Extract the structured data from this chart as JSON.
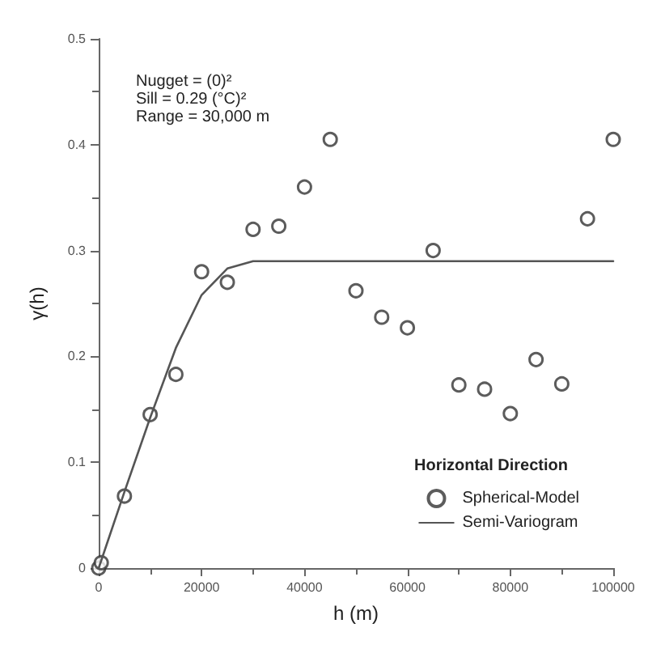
{
  "chart_data": {
    "type": "scatter",
    "xlabel": "h (m)",
    "ylabel": "γ(h)",
    "legend_title": "Horizontal Direction",
    "legend": "bottom right",
    "grid": false,
    "annotations": [
      "Nugget = (0)²",
      "Sill = 0.29 (°C)²",
      "Range = 30,000 m"
    ],
    "xlim": [
      0,
      100000
    ],
    "xticks": [
      0,
      20000,
      40000,
      60000,
      80000,
      100000
    ],
    "ylim": [
      0,
      0.5
    ],
    "yticks": [
      0,
      0.1,
      0.2,
      0.3,
      0.4,
      0.5
    ],
    "series": [
      {
        "name": "Spherical-Model",
        "marker": "circle",
        "color": "#333333",
        "x": [
          0,
          500,
          5000,
          10000,
          15000,
          20000,
          25000,
          30000,
          35000,
          40000,
          45000,
          50000,
          55000,
          60000,
          65000,
          70000,
          75000,
          80000,
          85000,
          90000,
          95000,
          100000
        ],
        "values": [
          0,
          0.005,
          0.068,
          0.145,
          0.183,
          0.28,
          0.27,
          0.32,
          0.323,
          0.36,
          0.405,
          0.262,
          0.237,
          0.227,
          0.3,
          0.173,
          0.169,
          0.146,
          0.197,
          0.174,
          0.33,
          0.405
        ]
      },
      {
        "name": "Semi-Variogram",
        "type": "line",
        "color": "#555555",
        "line_style": "solid",
        "x": [
          0,
          5000,
          10000,
          15000,
          20000,
          25000,
          30000,
          100000
        ],
        "values": [
          0,
          0.072,
          0.142,
          0.208,
          0.258,
          0.283,
          0.29,
          0.29
        ]
      }
    ]
  }
}
